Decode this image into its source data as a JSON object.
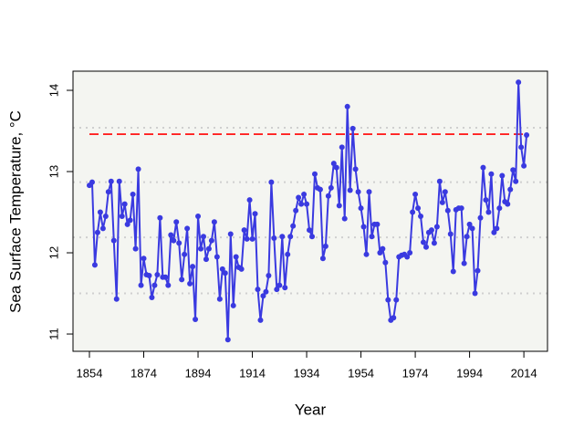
{
  "chart_data": {
    "type": "line",
    "x_label": "Year",
    "y_label": "Sea Surface Temperature, °C",
    "x": [
      1854,
      1855,
      1856,
      1857,
      1858,
      1859,
      1860,
      1861,
      1862,
      1863,
      1864,
      1865,
      1866,
      1867,
      1868,
      1869,
      1870,
      1871,
      1872,
      1873,
      1874,
      1875,
      1876,
      1877,
      1878,
      1879,
      1880,
      1881,
      1882,
      1883,
      1884,
      1885,
      1886,
      1887,
      1888,
      1889,
      1890,
      1891,
      1892,
      1893,
      1894,
      1895,
      1896,
      1897,
      1898,
      1899,
      1900,
      1901,
      1902,
      1903,
      1904,
      1905,
      1906,
      1907,
      1908,
      1909,
      1910,
      1911,
      1912,
      1913,
      1914,
      1915,
      1916,
      1917,
      1918,
      1919,
      1920,
      1921,
      1922,
      1923,
      1924,
      1925,
      1926,
      1927,
      1928,
      1929,
      1930,
      1931,
      1932,
      1933,
      1934,
      1935,
      1936,
      1937,
      1938,
      1939,
      1940,
      1941,
      1942,
      1943,
      1944,
      1945,
      1946,
      1947,
      1948,
      1949,
      1950,
      1951,
      1952,
      1953,
      1954,
      1955,
      1956,
      1957,
      1958,
      1959,
      1960,
      1961,
      1962,
      1963,
      1964,
      1965,
      1966,
      1967,
      1968,
      1969,
      1970,
      1971,
      1972,
      1973,
      1974,
      1975,
      1976,
      1977,
      1978,
      1979,
      1980,
      1981,
      1982,
      1983,
      1984,
      1985,
      1986,
      1987,
      1988,
      1989,
      1990,
      1991,
      1992,
      1993,
      1994,
      1995,
      1996,
      1997,
      1998,
      1999,
      2000,
      2001,
      2002,
      2003,
      2004,
      2005,
      2006,
      2007,
      2008,
      2009,
      2010,
      2011,
      2012,
      2013,
      2014,
      2015
    ],
    "series": [
      {
        "color": "#3a3ae0",
        "values": [
          12.83,
          12.87,
          11.85,
          12.25,
          12.5,
          12.3,
          12.45,
          12.75,
          12.88,
          12.15,
          11.43,
          12.88,
          12.45,
          12.6,
          12.35,
          12.4,
          12.72,
          12.05,
          13.03,
          11.6,
          11.93,
          11.73,
          11.72,
          11.45,
          11.6,
          11.73,
          12.43,
          11.7,
          11.7,
          11.6,
          12.22,
          12.15,
          12.38,
          12.12,
          11.67,
          11.98,
          12.3,
          11.62,
          11.83,
          11.18,
          12.45,
          12.05,
          12.2,
          11.92,
          12.05,
          12.15,
          12.38,
          11.95,
          11.43,
          11.8,
          11.75,
          10.93,
          12.23,
          11.35,
          11.95,
          11.82,
          11.8,
          12.28,
          12.17,
          12.65,
          12.17,
          12.48,
          11.55,
          11.17,
          11.47,
          11.52,
          11.72,
          12.87,
          12.18,
          11.55,
          11.6,
          12.2,
          11.57,
          11.98,
          12.2,
          12.33,
          12.52,
          12.68,
          12.6,
          12.72,
          12.6,
          12.28,
          12.2,
          12.97,
          12.8,
          12.78,
          11.93,
          12.08,
          12.7,
          12.8,
          13.1,
          13.05,
          12.58,
          13.3,
          12.42,
          13.8,
          12.77,
          13.53,
          13.03,
          12.75,
          12.55,
          12.32,
          11.98,
          12.75,
          12.2,
          12.35,
          12.35,
          12.0,
          12.05,
          11.88,
          11.42,
          11.17,
          11.2,
          11.42,
          11.95,
          11.97,
          11.98,
          11.95,
          12.0,
          12.5,
          12.72,
          12.55,
          12.45,
          12.13,
          12.07,
          12.25,
          12.28,
          12.12,
          12.32,
          12.88,
          12.62,
          12.75,
          12.52,
          12.23,
          11.77,
          12.53,
          12.55,
          12.55,
          11.87,
          12.2,
          12.35,
          12.3,
          11.5,
          11.78,
          12.43,
          13.05,
          12.65,
          12.5,
          12.97,
          12.25,
          12.3,
          12.55,
          12.95,
          12.63,
          12.6,
          12.78,
          13.02,
          12.88,
          14.1,
          13.3,
          13.07,
          13.45
        ]
      }
    ],
    "xlim": [
      1847.95,
      2022.7
    ],
    "ylim": [
      10.787,
      14.236
    ],
    "xticks": [
      1854,
      1874,
      1894,
      1914,
      1934,
      1954,
      1974,
      1994,
      2014
    ],
    "yticks": [
      11,
      12,
      13,
      14
    ],
    "background": "#f4f5f1",
    "reference_lines": [
      {
        "value": 13.46,
        "color": "#ff2020",
        "style": "dashed",
        "xrange": [
          1854,
          2014
        ]
      },
      {
        "value": 13.54,
        "color": "#cfcfcf",
        "style": "dotted"
      },
      {
        "value": 12.87,
        "color": "#cfcfcf",
        "style": "dotted"
      },
      {
        "value": 12.19,
        "color": "#cfcfcf",
        "style": "dotted"
      },
      {
        "value": 11.5,
        "color": "#cfcfcf",
        "style": "dotted"
      }
    ]
  }
}
